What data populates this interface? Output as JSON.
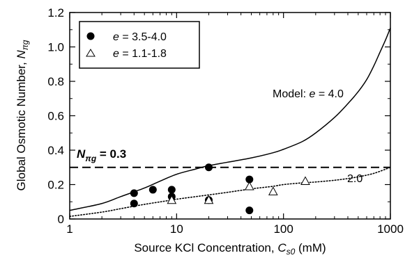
{
  "chart_data": {
    "type": "scatter",
    "xlabel": {
      "prefix": "Source KCl Concentration, ",
      "symbol": "C",
      "sub": "s0",
      "suffix": " (mM)"
    },
    "ylabel": {
      "prefix": "Global Osmotic Number, ",
      "symbol": "N",
      "sub": "πg"
    },
    "xscale": "log",
    "xlim": [
      1,
      1000
    ],
    "ylim": [
      0,
      1.2
    ],
    "x_ticks": [
      1,
      10,
      100,
      1000
    ],
    "x_tick_labels": [
      "1",
      "10",
      "100",
      "1000"
    ],
    "y_ticks": [
      0,
      0.2,
      0.4,
      0.6,
      0.8,
      1.0,
      1.2
    ],
    "y_tick_labels": [
      "0",
      "0.2",
      "0.4",
      "0.6",
      "0.8",
      "1.0",
      "1.2"
    ],
    "grid": false,
    "legend_position": "top-left",
    "series": [
      {
        "name": "e = 3.5-4.0",
        "legend": {
          "var": "e",
          "rest": " = 3.5-4.0"
        },
        "marker": "filled-circle",
        "points": [
          [
            4,
            0.15
          ],
          [
            4,
            0.09
          ],
          [
            6,
            0.17
          ],
          [
            9,
            0.17
          ],
          [
            9,
            0.13
          ],
          [
            20,
            0.3
          ],
          [
            20,
            0.11
          ],
          [
            48,
            0.23
          ],
          [
            48,
            0.05
          ]
        ]
      },
      {
        "name": "e = 1.1-1.8",
        "legend": {
          "var": "e",
          "rest": " = 1.1-1.8"
        },
        "marker": "open-triangle",
        "points": [
          [
            9,
            0.11
          ],
          [
            20,
            0.11
          ],
          [
            48,
            0.19
          ],
          [
            80,
            0.16
          ],
          [
            160,
            0.22
          ]
        ]
      }
    ],
    "curves": [
      {
        "name": "Model: e = 4.0",
        "style": "solid",
        "points": [
          [
            1,
            0.05
          ],
          [
            2,
            0.09
          ],
          [
            3,
            0.13
          ],
          [
            5,
            0.18
          ],
          [
            7,
            0.22
          ],
          [
            10,
            0.26
          ],
          [
            15,
            0.29
          ],
          [
            20,
            0.31
          ],
          [
            30,
            0.33
          ],
          [
            50,
            0.355
          ],
          [
            80,
            0.385
          ],
          [
            100,
            0.405
          ],
          [
            150,
            0.45
          ],
          [
            200,
            0.5
          ],
          [
            300,
            0.59
          ],
          [
            400,
            0.67
          ],
          [
            500,
            0.74
          ],
          [
            600,
            0.81
          ],
          [
            700,
            0.89
          ],
          [
            800,
            0.97
          ],
          [
            900,
            1.04
          ],
          [
            1000,
            1.11
          ]
        ]
      },
      {
        "name": "2.0",
        "style": "dotted",
        "points": [
          [
            1,
            0.015
          ],
          [
            2,
            0.04
          ],
          [
            3,
            0.06
          ],
          [
            5,
            0.085
          ],
          [
            8,
            0.105
          ],
          [
            10,
            0.115
          ],
          [
            20,
            0.14
          ],
          [
            30,
            0.155
          ],
          [
            50,
            0.175
          ],
          [
            80,
            0.19
          ],
          [
            100,
            0.2
          ],
          [
            150,
            0.21
          ],
          [
            200,
            0.215
          ],
          [
            300,
            0.225
          ],
          [
            400,
            0.235
          ],
          [
            500,
            0.245
          ],
          [
            700,
            0.265
          ],
          [
            1000,
            0.3
          ]
        ]
      }
    ],
    "reference_line": {
      "y": 0.3,
      "style": "dashed"
    },
    "annotations": [
      {
        "id": "model",
        "prefix": "Model: ",
        "var": "e",
        "suffix": " = 4.0"
      },
      {
        "id": "curve2",
        "text": "2.0"
      },
      {
        "id": "threshold",
        "symbol": "N",
        "sub": "πg",
        "suffix": " = 0.3"
      }
    ]
  }
}
